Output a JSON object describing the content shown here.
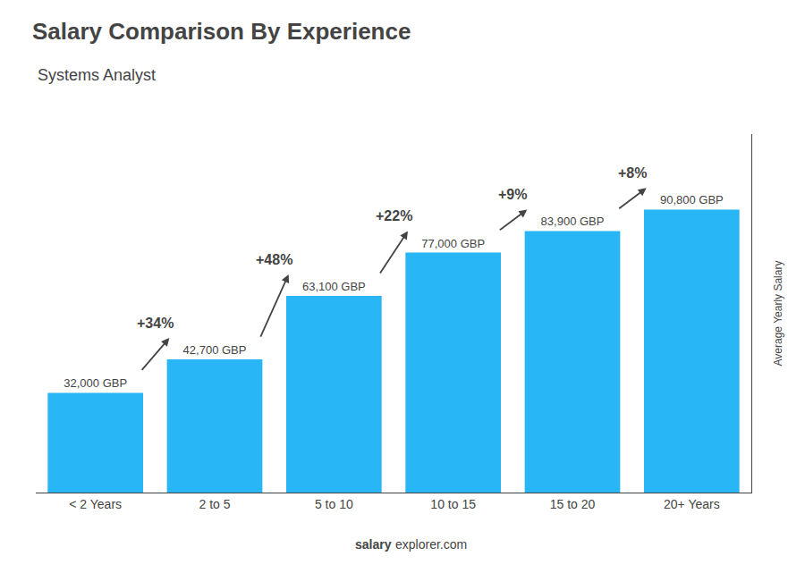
{
  "chart_data": {
    "type": "bar",
    "title": "Salary Comparison By Experience",
    "subtitle": "Systems Analyst",
    "ylabel": "Average Yearly Salary",
    "categories": [
      "< 2 Years",
      "2 to 5",
      "5 to 10",
      "10 to 15",
      "15 to 20",
      "20+ Years"
    ],
    "values": [
      32000,
      42700,
      63100,
      77000,
      83900,
      90800
    ],
    "value_labels": [
      "32,000 GBP",
      "42,700 GBP",
      "63,100 GBP",
      "77,000 GBP",
      "83,900 GBP",
      "90,800 GBP"
    ],
    "data_labels": true,
    "annotations": [
      "+34%",
      "+48%",
      "+22%",
      "+9%",
      "+8%"
    ],
    "footer": [
      "salary",
      "explorer.com"
    ],
    "color": "#29B6F6",
    "ylim": [
      0,
      115000
    ],
    "tick_labels": "x",
    "grid": false,
    "legend": false
  }
}
